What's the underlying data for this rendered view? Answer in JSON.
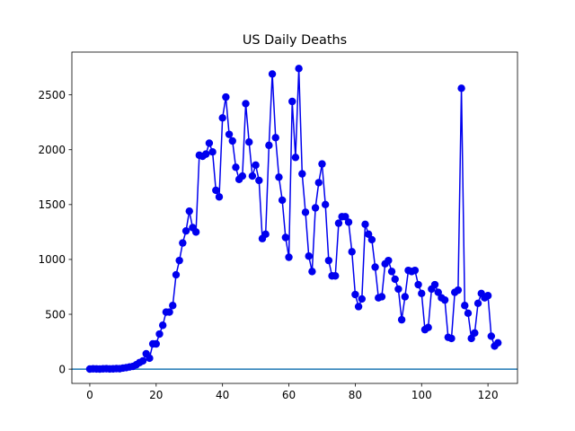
{
  "chart_data": {
    "type": "line",
    "title": "US Daily Deaths",
    "xlabel": "",
    "ylabel": "",
    "xlim": [
      -5.4,
      128.9
    ],
    "ylim": [
      -130,
      2890
    ],
    "xticks": [
      0,
      20,
      40,
      60,
      80,
      100,
      120
    ],
    "yticks": [
      0,
      500,
      1000,
      1500,
      2000,
      2500
    ],
    "grid": false,
    "legend": "none",
    "series_color": "#0000ee",
    "baseline": {
      "y": 0,
      "color": "#1f77b4"
    },
    "series": [
      {
        "x": [
          0,
          1,
          2,
          3,
          4,
          5,
          6,
          7,
          8,
          9,
          10,
          11,
          12,
          13,
          14,
          15,
          16,
          17,
          18,
          19,
          20,
          21,
          22,
          23,
          24,
          25,
          26,
          27,
          28,
          29,
          30,
          31,
          32,
          33,
          34,
          35,
          36,
          37,
          38,
          39,
          40,
          41,
          42,
          43,
          44,
          45,
          46,
          47,
          48,
          49,
          50,
          51,
          52,
          53,
          54,
          55,
          56,
          57,
          58,
          59,
          60,
          61,
          62,
          63,
          64,
          65,
          66,
          67,
          68,
          69,
          70,
          71,
          72,
          73,
          74,
          75,
          76,
          77,
          78,
          79,
          80,
          81,
          82,
          83,
          84,
          85,
          86,
          87,
          88,
          89,
          90,
          91,
          92,
          93,
          94,
          95,
          96,
          97,
          98,
          99,
          100,
          101,
          102,
          103,
          104,
          105,
          106,
          107,
          108,
          109,
          110,
          111,
          112,
          113,
          114,
          115,
          116,
          117,
          118,
          119,
          120,
          121,
          122,
          123
        ],
        "y": [
          1,
          3,
          2,
          1,
          3,
          4,
          2,
          3,
          5,
          4,
          10,
          14,
          20,
          25,
          40,
          60,
          75,
          140,
          100,
          230,
          230,
          320,
          400,
          520,
          520,
          580,
          860,
          990,
          1150,
          1260,
          1440,
          1290,
          1250,
          1950,
          1940,
          1960,
          2060,
          1980,
          1630,
          1570,
          2290,
          2480,
          2140,
          2080,
          1840,
          1730,
          1760,
          2420,
          2070,
          1760,
          1860,
          1720,
          1190,
          1230,
          2040,
          2690,
          2110,
          1750,
          1540,
          1200,
          1020,
          2440,
          1930,
          2740,
          1780,
          1430,
          1030,
          890,
          1470,
          1700,
          1870,
          1500,
          990,
          850,
          850,
          1330,
          1390,
          1390,
          1340,
          1070,
          680,
          570,
          640,
          1320,
          1230,
          1180,
          930,
          650,
          660,
          960,
          990,
          890,
          820,
          730,
          450,
          660,
          900,
          890,
          900,
          770,
          690,
          360,
          380,
          730,
          770,
          700,
          650,
          630,
          290,
          280,
          700,
          720,
          2560,
          580,
          510,
          280,
          330,
          600,
          690,
          650,
          670,
          300,
          210,
          240
        ]
      }
    ]
  }
}
